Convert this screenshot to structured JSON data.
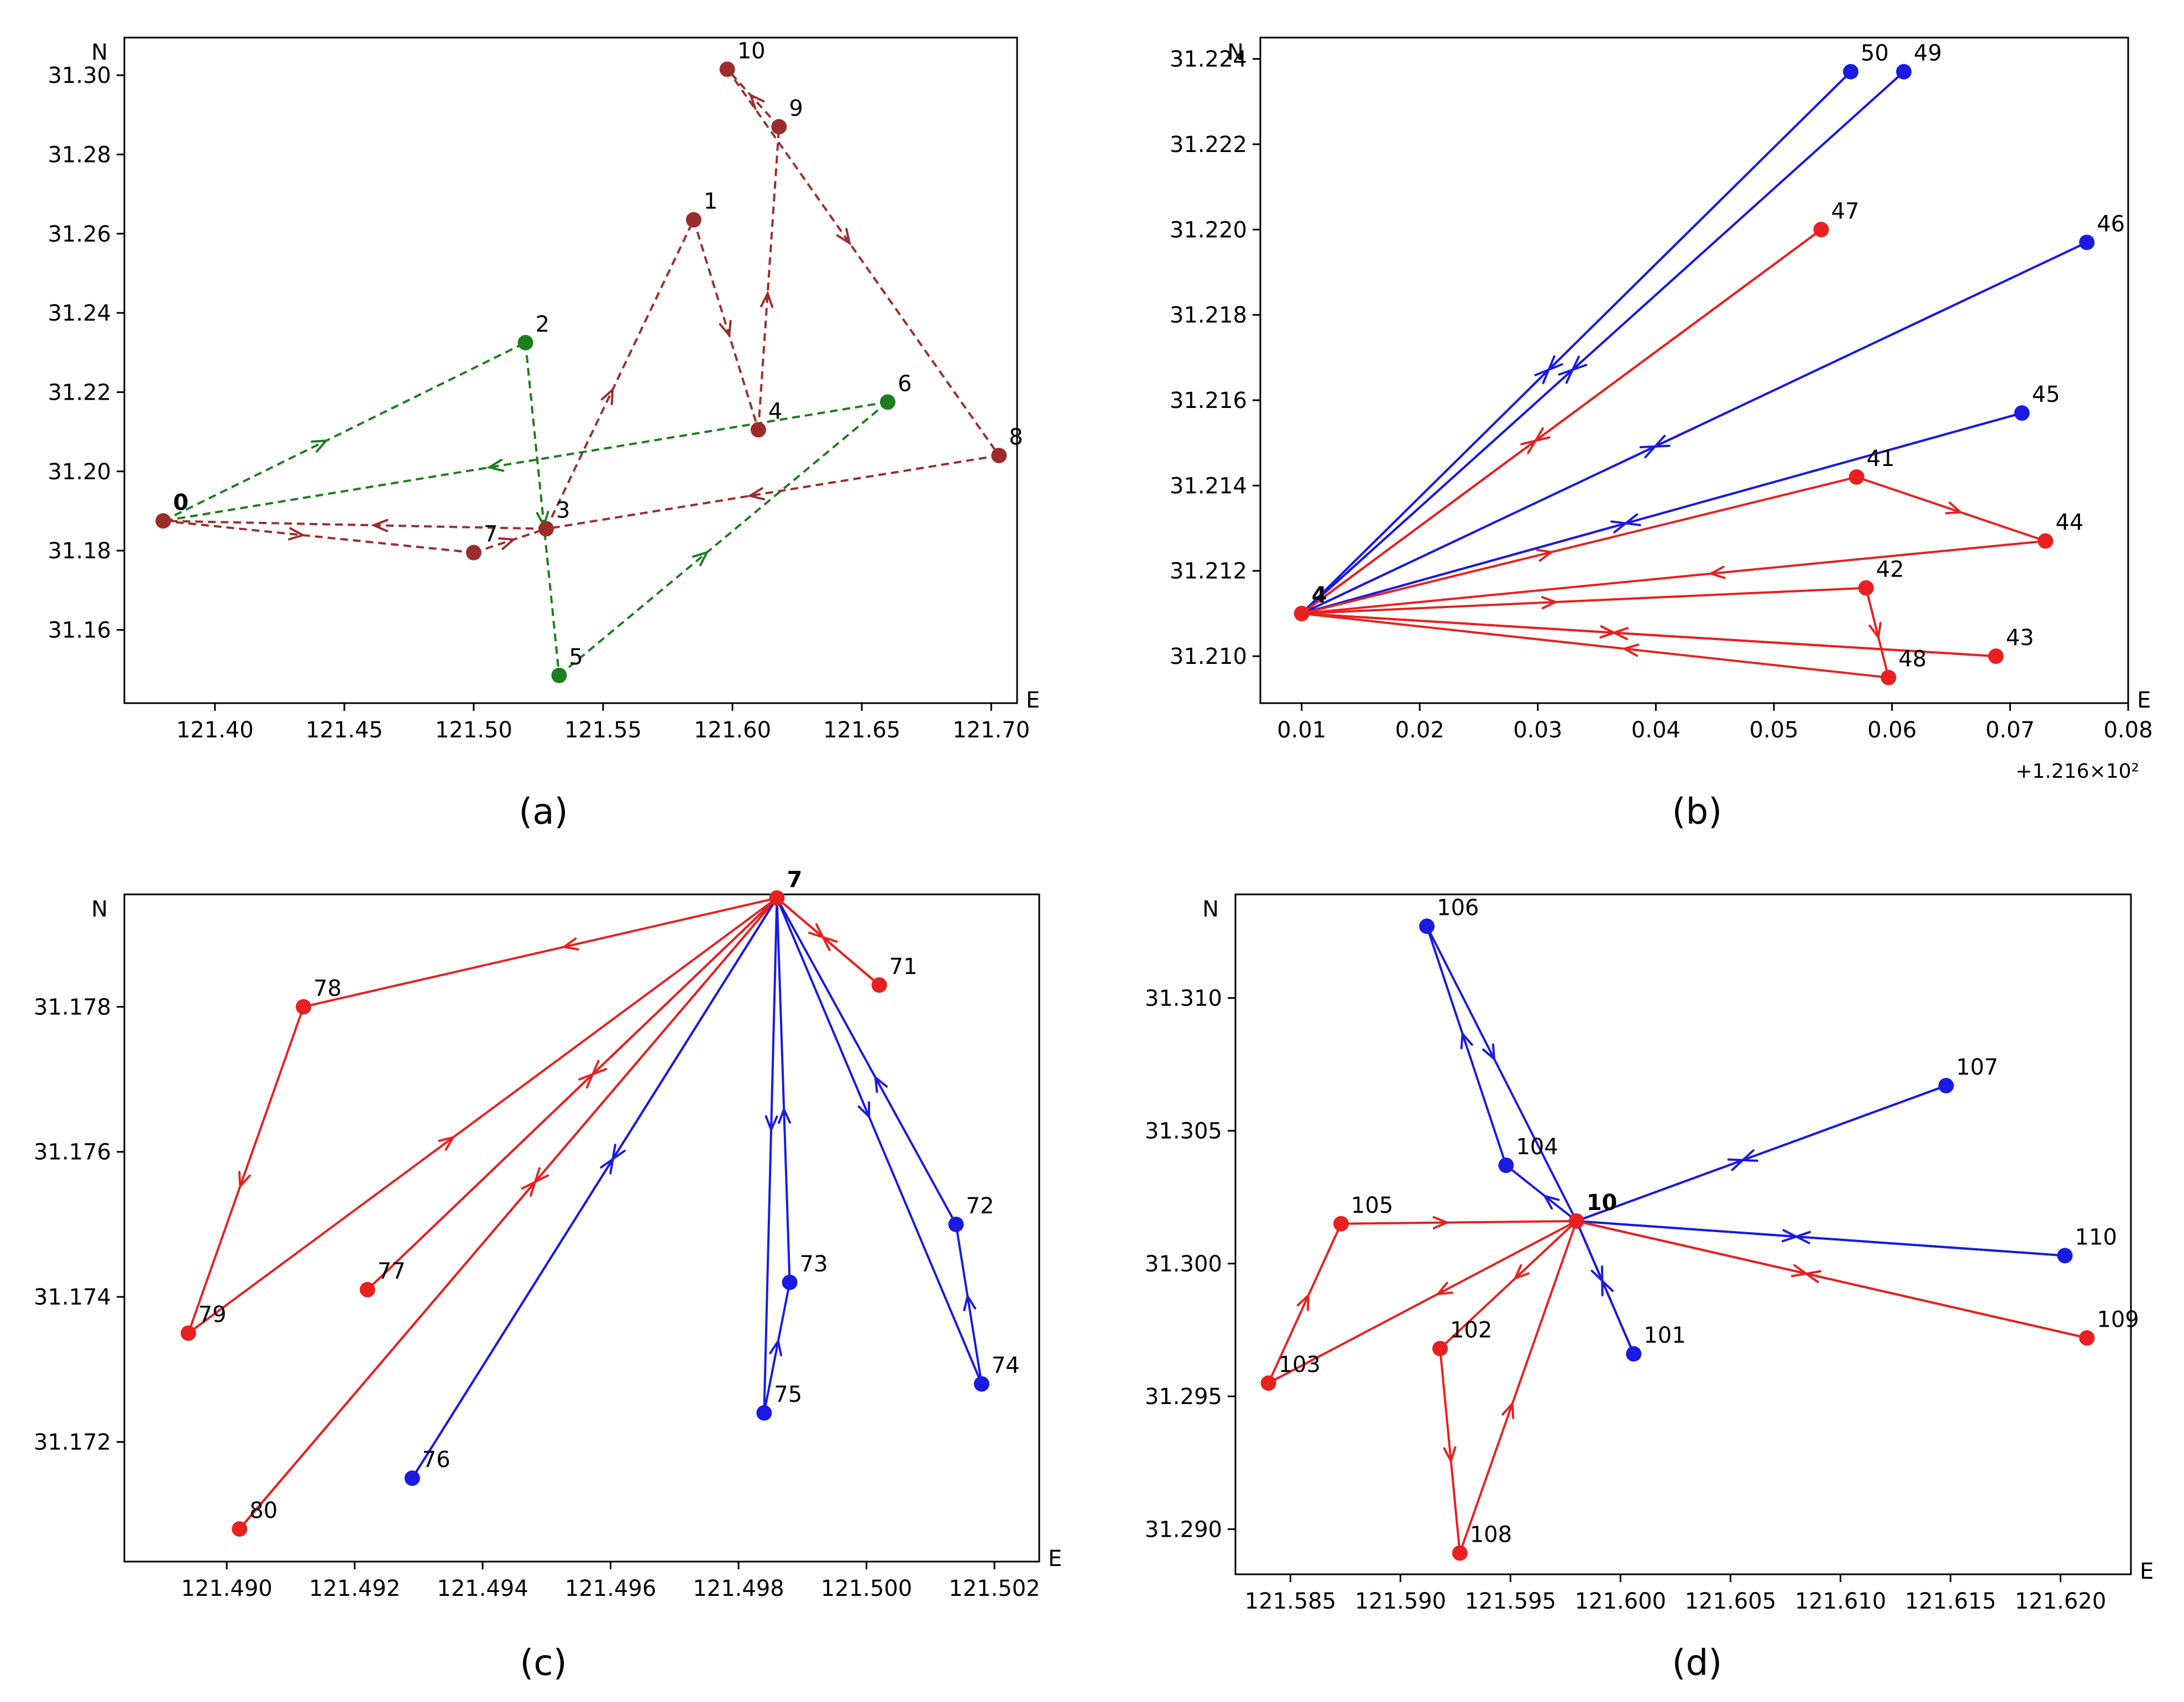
{
  "chart_data": [
    {
      "id": "a",
      "caption": "(a)",
      "type": "line",
      "xlabel": "E",
      "ylabel": "N",
      "offset_label": "",
      "xlim": [
        121.365,
        121.71
      ],
      "ylim": [
        31.1415,
        31.3095
      ],
      "xticks": [
        121.4,
        121.45,
        121.5,
        121.55,
        121.6,
        121.65,
        121.7
      ],
      "xtick_labels": [
        "121.40",
        "121.45",
        "121.50",
        "121.55",
        "121.60",
        "121.65",
        "121.70"
      ],
      "yticks": [
        31.16,
        31.18,
        31.2,
        31.22,
        31.24,
        31.26,
        31.28,
        31.3
      ],
      "ytick_labels": [
        "31.16",
        "31.18",
        "31.20",
        "31.22",
        "31.24",
        "31.26",
        "31.28",
        "31.30"
      ],
      "colors": {
        "green": "#1e7d1e",
        "brown": "#9b2d2d"
      },
      "points": [
        {
          "label": "0",
          "x": 121.38,
          "y": 31.1875,
          "color": "brown",
          "bold": true
        },
        {
          "label": "1",
          "x": 121.585,
          "y": 31.2635,
          "color": "brown"
        },
        {
          "label": "2",
          "x": 121.52,
          "y": 31.2325,
          "color": "green"
        },
        {
          "label": "3",
          "x": 121.528,
          "y": 31.1855,
          "color": "brown"
        },
        {
          "label": "4",
          "x": 121.61,
          "y": 31.2105,
          "color": "brown"
        },
        {
          "label": "5",
          "x": 121.533,
          "y": 31.1485,
          "color": "green"
        },
        {
          "label": "6",
          "x": 121.66,
          "y": 31.2175,
          "color": "green"
        },
        {
          "label": "7",
          "x": 121.5,
          "y": 31.1795,
          "color": "brown"
        },
        {
          "label": "8",
          "x": 121.703,
          "y": 31.204,
          "color": "brown"
        },
        {
          "label": "9",
          "x": 121.618,
          "y": 31.287,
          "color": "brown"
        },
        {
          "label": "10",
          "x": 121.598,
          "y": 31.3015,
          "color": "brown"
        }
      ],
      "series": [
        {
          "name": "green route",
          "color": "green",
          "dashed": true,
          "path": [
            "0",
            "2",
            "5",
            "6",
            "0"
          ]
        },
        {
          "name": "brown route",
          "color": "brown",
          "dashed": true,
          "path": [
            "0",
            "7",
            "3",
            "1",
            "4",
            "9",
            "10",
            "8",
            "3",
            "0"
          ]
        }
      ]
    },
    {
      "id": "b",
      "caption": "(b)",
      "type": "line",
      "xlabel": "E",
      "ylabel": "N",
      "offset_label": "+1.216×10²",
      "xlim": [
        0.0065,
        0.08
      ],
      "ylim": [
        31.2089,
        31.2245
      ],
      "xticks": [
        0.01,
        0.02,
        0.03,
        0.04,
        0.05,
        0.06,
        0.07,
        0.08
      ],
      "xtick_labels": [
        "0.01",
        "0.02",
        "0.03",
        "0.04",
        "0.05",
        "0.06",
        "0.07",
        "0.08"
      ],
      "yticks": [
        31.21,
        31.212,
        31.214,
        31.216,
        31.218,
        31.22,
        31.222,
        31.224
      ],
      "ytick_labels": [
        "31.210",
        "31.212",
        "31.214",
        "31.216",
        "31.218",
        "31.220",
        "31.222",
        "31.224"
      ],
      "colors": {
        "red": "#e82020",
        "blue": "#1a1ae0"
      },
      "points": [
        {
          "label": "4",
          "x": 0.01,
          "y": 31.211,
          "color": "red",
          "bold": true
        },
        {
          "label": "50",
          "x": 0.0565,
          "y": 31.2237,
          "color": "blue"
        },
        {
          "label": "49",
          "x": 0.061,
          "y": 31.2237,
          "color": "blue"
        },
        {
          "label": "47",
          "x": 0.054,
          "y": 31.22,
          "color": "red"
        },
        {
          "label": "46",
          "x": 0.0765,
          "y": 31.2197,
          "color": "blue"
        },
        {
          "label": "45",
          "x": 0.071,
          "y": 31.2157,
          "color": "blue"
        },
        {
          "label": "41",
          "x": 0.057,
          "y": 31.2142,
          "color": "red"
        },
        {
          "label": "44",
          "x": 0.073,
          "y": 31.2127,
          "color": "red"
        },
        {
          "label": "42",
          "x": 0.0578,
          "y": 31.2116,
          "color": "red"
        },
        {
          "label": "43",
          "x": 0.0688,
          "y": 31.21,
          "color": "red"
        },
        {
          "label": "48",
          "x": 0.0597,
          "y": 31.2095,
          "color": "red"
        }
      ],
      "series": [
        {
          "name": "blue route 50",
          "color": "blue",
          "path": [
            "4",
            "50",
            "4"
          ]
        },
        {
          "name": "blue route 49",
          "color": "blue",
          "path": [
            "4",
            "49",
            "4"
          ]
        },
        {
          "name": "blue route 46",
          "color": "blue",
          "path": [
            "4",
            "46",
            "4"
          ]
        },
        {
          "name": "blue route 45",
          "color": "blue",
          "path": [
            "4",
            "45",
            "4"
          ]
        },
        {
          "name": "red route 47",
          "color": "red",
          "path": [
            "4",
            "47",
            "4"
          ]
        },
        {
          "name": "red route 41-44",
          "color": "red",
          "path": [
            "4",
            "41",
            "44",
            "4"
          ]
        },
        {
          "name": "red route 42-48",
          "color": "red",
          "path": [
            "4",
            "42",
            "48",
            "4"
          ]
        },
        {
          "name": "red route 43",
          "color": "red",
          "path": [
            "4",
            "43",
            "4"
          ]
        }
      ]
    },
    {
      "id": "c",
      "caption": "(c)",
      "type": "line",
      "xlabel": "E",
      "ylabel": "N",
      "offset_label": "",
      "xlim": [
        121.4884,
        121.5027
      ],
      "ylim": [
        31.17035,
        31.17955
      ],
      "xticks": [
        121.49,
        121.492,
        121.494,
        121.496,
        121.498,
        121.5,
        121.502
      ],
      "xtick_labels": [
        "121.490",
        "121.492",
        "121.494",
        "121.496",
        "121.498",
        "121.500",
        "121.502"
      ],
      "yticks": [
        31.172,
        31.174,
        31.176,
        31.178
      ],
      "ytick_labels": [
        "31.172",
        "31.174",
        "31.176",
        "31.178"
      ],
      "colors": {
        "red": "#e82020",
        "blue": "#1a1ae0"
      },
      "points": [
        {
          "label": "7",
          "x": 121.4986,
          "y": 31.1795,
          "color": "red",
          "bold": true
        },
        {
          "label": "71",
          "x": 121.5002,
          "y": 31.1783,
          "color": "red"
        },
        {
          "label": "78",
          "x": 121.4912,
          "y": 31.178,
          "color": "red"
        },
        {
          "label": "79",
          "x": 121.4894,
          "y": 31.1735,
          "color": "red"
        },
        {
          "label": "77",
          "x": 121.4922,
          "y": 31.1741,
          "color": "red"
        },
        {
          "label": "80",
          "x": 121.4902,
          "y": 31.1708,
          "color": "red"
        },
        {
          "label": "76",
          "x": 121.4929,
          "y": 31.1715,
          "color": "blue"
        },
        {
          "label": "75",
          "x": 121.4984,
          "y": 31.1724,
          "color": "blue"
        },
        {
          "label": "73",
          "x": 121.4988,
          "y": 31.1742,
          "color": "blue"
        },
        {
          "label": "72",
          "x": 121.5014,
          "y": 31.175,
          "color": "blue"
        },
        {
          "label": "74",
          "x": 121.5018,
          "y": 31.1728,
          "color": "blue"
        }
      ],
      "series": [
        {
          "name": "red route 71",
          "color": "red",
          "path": [
            "7",
            "71",
            "7"
          ]
        },
        {
          "name": "red route 78-79",
          "color": "red",
          "path": [
            "7",
            "78",
            "79",
            "7"
          ]
        },
        {
          "name": "red route 77",
          "color": "red",
          "path": [
            "7",
            "77",
            "7"
          ]
        },
        {
          "name": "red route 80",
          "color": "red",
          "path": [
            "7",
            "80",
            "7"
          ]
        },
        {
          "name": "blue route 76",
          "color": "blue",
          "path": [
            "7",
            "76",
            "7"
          ]
        },
        {
          "name": "blue route 75-73",
          "color": "blue",
          "path": [
            "7",
            "75",
            "73",
            "7"
          ]
        },
        {
          "name": "blue route 72-74",
          "color": "blue",
          "path": [
            "7",
            "74",
            "72",
            "7"
          ]
        }
      ]
    },
    {
      "id": "d",
      "caption": "(d)",
      "type": "line",
      "xlabel": "E",
      "ylabel": "N",
      "offset_label": "",
      "xlim": [
        121.5825,
        121.6232
      ],
      "ylim": [
        31.2883,
        31.3139
      ],
      "xticks": [
        121.585,
        121.59,
        121.595,
        121.6,
        121.605,
        121.61,
        121.615,
        121.62
      ],
      "xtick_labels": [
        "121.585",
        "121.590",
        "121.595",
        "121.600",
        "121.605",
        "121.610",
        "121.615",
        "121.620"
      ],
      "yticks": [
        31.29,
        31.295,
        31.3,
        31.305,
        31.31
      ],
      "ytick_labels": [
        "31.290",
        "31.295",
        "31.300",
        "31.305",
        "31.310"
      ],
      "colors": {
        "red": "#e82020",
        "blue": "#1a1ae0"
      },
      "points": [
        {
          "label": "10",
          "x": 121.598,
          "y": 31.3016,
          "color": "red",
          "bold": true
        },
        {
          "label": "106",
          "x": 121.5912,
          "y": 31.3127,
          "color": "blue"
        },
        {
          "label": "104",
          "x": 121.5948,
          "y": 31.3037,
          "color": "blue"
        },
        {
          "label": "107",
          "x": 121.6148,
          "y": 31.3067,
          "color": "blue"
        },
        {
          "label": "110",
          "x": 121.6202,
          "y": 31.3003,
          "color": "blue"
        },
        {
          "label": "101",
          "x": 121.6006,
          "y": 31.2966,
          "color": "blue"
        },
        {
          "label": "105",
          "x": 121.5873,
          "y": 31.3015,
          "color": "red"
        },
        {
          "label": "103",
          "x": 121.584,
          "y": 31.2955,
          "color": "red"
        },
        {
          "label": "102",
          "x": 121.5918,
          "y": 31.2968,
          "color": "red"
        },
        {
          "label": "108",
          "x": 121.5927,
          "y": 31.2891,
          "color": "red"
        },
        {
          "label": "109",
          "x": 121.6212,
          "y": 31.2972,
          "color": "red"
        }
      ],
      "series": [
        {
          "name": "blue route 106-104",
          "color": "blue",
          "path": [
            "10",
            "104",
            "106",
            "10"
          ]
        },
        {
          "name": "blue route 107",
          "color": "blue",
          "path": [
            "10",
            "107",
            "10"
          ]
        },
        {
          "name": "blue route 110",
          "color": "blue",
          "path": [
            "10",
            "110",
            "10"
          ]
        },
        {
          "name": "blue route 101",
          "color": "blue",
          "path": [
            "10",
            "101",
            "10"
          ]
        },
        {
          "name": "red route 105-103",
          "color": "red",
          "path": [
            "10",
            "103",
            "105",
            "10"
          ]
        },
        {
          "name": "red route 102-108",
          "color": "red",
          "path": [
            "10",
            "102",
            "108",
            "10"
          ]
        },
        {
          "name": "red route 109",
          "color": "red",
          "path": [
            "10",
            "109",
            "10"
          ]
        }
      ]
    }
  ]
}
